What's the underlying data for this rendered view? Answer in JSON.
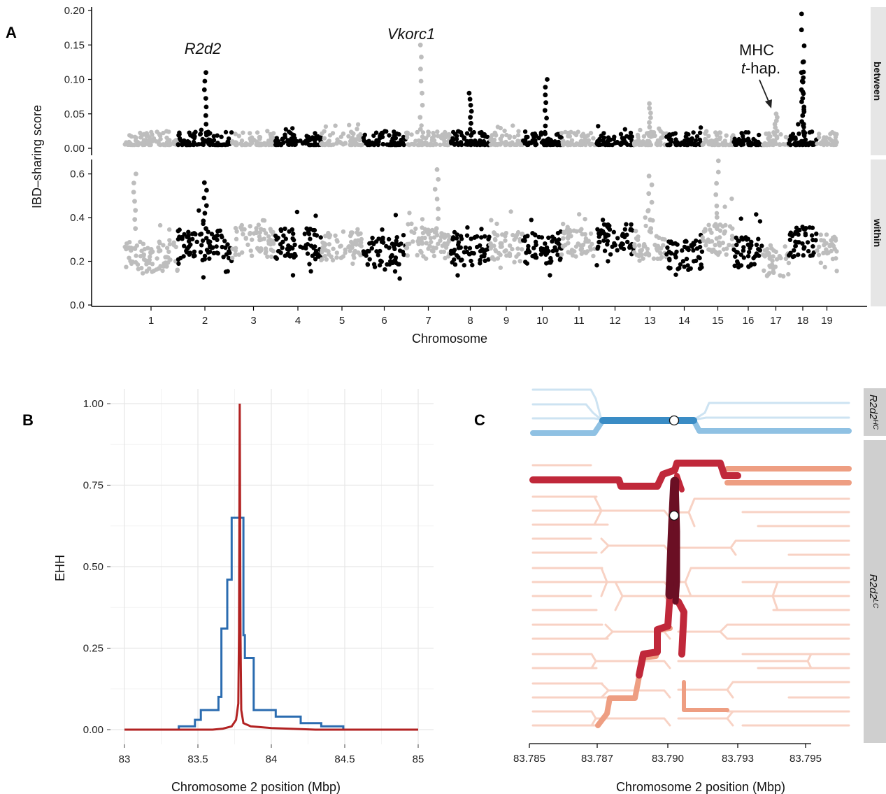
{
  "panels": {
    "a": "A",
    "b": "B",
    "c": "C"
  },
  "chart_data": [
    {
      "type": "scatter",
      "panel": "A",
      "xlabel": "Chromosome",
      "ylabel": "IBD–sharing score",
      "categories": [
        "1",
        "2",
        "3",
        "4",
        "5",
        "6",
        "7",
        "8",
        "9",
        "10",
        "11",
        "12",
        "13",
        "14",
        "15",
        "16",
        "17",
        "18",
        "19"
      ],
      "colors": {
        "odd": "#bdbdbd",
        "even": "#000000"
      },
      "facets": [
        {
          "name": "between",
          "ylim": [
            0,
            0.2
          ],
          "yticks": [
            "0.00",
            "0.05",
            "0.10",
            "0.15",
            "0.20"
          ],
          "baseline": 0.005,
          "peaks": [
            {
              "chrom": 2,
              "score": 0.11
            },
            {
              "chrom": 7,
              "score": 0.15
            },
            {
              "chrom": 8,
              "score": 0.08
            },
            {
              "chrom": 10,
              "score": 0.1
            },
            {
              "chrom": 13,
              "score": 0.065
            },
            {
              "chrom": 17,
              "score": 0.05
            },
            {
              "chrom": 18,
              "score": 0.195
            },
            {
              "chrom": 18,
              "score": 0.125
            },
            {
              "chrom": 18,
              "score": 0.11
            }
          ]
        },
        {
          "name": "within",
          "ylim": [
            0,
            0.65
          ],
          "yticks": [
            "0.0",
            "0.2",
            "0.4",
            "0.6"
          ],
          "baseline": 0.27,
          "peaks": [
            {
              "chrom": 1,
              "score": 0.6
            },
            {
              "chrom": 7,
              "score": 0.62
            },
            {
              "chrom": 15,
              "score": 0.66
            },
            {
              "chrom": 2,
              "score": 0.56
            },
            {
              "chrom": 13,
              "score": 0.59
            }
          ]
        }
      ],
      "annotations": {
        "gene1": "R2d2",
        "gene2": "Vkorc1",
        "mhc_line1": "MHC",
        "mhc_t": "t",
        "mhc_rest": "-hap."
      }
    },
    {
      "type": "line",
      "panel": "B",
      "xlabel": "Chromosome 2 position (Mbp)",
      "ylabel": "EHH",
      "xlim": [
        83,
        85
      ],
      "ylim": [
        0,
        1
      ],
      "xticks": [
        "83",
        "83.5",
        "84",
        "84.5",
        "85"
      ],
      "yticks": [
        "0.00",
        "0.25",
        "0.50",
        "0.75",
        "1.00"
      ],
      "series": [
        {
          "color": "#2b6cb0",
          "x": [
            83.0,
            83.3,
            83.37,
            83.37,
            83.48,
            83.48,
            83.52,
            83.52,
            83.64,
            83.64,
            83.66,
            83.66,
            83.7,
            83.7,
            83.73,
            83.73,
            83.76,
            83.76,
            83.81,
            83.81,
            83.82,
            83.82,
            83.88,
            83.88,
            84.03,
            84.03,
            84.2,
            84.2,
            84.34,
            84.34,
            84.49,
            84.49,
            85.0
          ],
          "y": [
            0.0,
            0.0,
            0.0,
            0.01,
            0.01,
            0.03,
            0.03,
            0.06,
            0.06,
            0.1,
            0.1,
            0.31,
            0.31,
            0.46,
            0.46,
            0.65,
            0.65,
            0.65,
            0.65,
            0.29,
            0.29,
            0.22,
            0.22,
            0.06,
            0.06,
            0.04,
            0.04,
            0.02,
            0.02,
            0.01,
            0.01,
            0.0,
            0.0
          ]
        },
        {
          "color": "#b22222",
          "x": [
            83.0,
            83.6,
            83.67,
            83.73,
            83.76,
            83.775,
            83.78,
            83.785,
            83.79,
            83.795,
            83.81,
            83.86,
            84.0,
            84.3,
            85.0
          ],
          "y": [
            0.0,
            0.0,
            0.003,
            0.01,
            0.03,
            0.08,
            0.3,
            1.0,
            0.3,
            0.06,
            0.02,
            0.01,
            0.005,
            0.0,
            0.0
          ]
        }
      ]
    },
    {
      "type": "diagram",
      "panel": "C",
      "xlabel": "Chromosome 2 position (Mbp)",
      "xticks": [
        "83.785",
        "83.787",
        "83.790",
        "83.793",
        "83.795"
      ],
      "strips": {
        "hc_base": "R2d2",
        "hc_sup": "HC",
        "lc_base": "R2d2",
        "lc_sup": "LC"
      },
      "colors": {
        "hc_light": "#cde3f2",
        "hc_mid": "#8fc1e3",
        "hc_dark": "#3a8cc5",
        "lc_light": "#f8d2c4",
        "lc_mid": "#ee9e82",
        "lc_red": "#c0283a",
        "lc_dark": "#6b0f24"
      }
    }
  ]
}
